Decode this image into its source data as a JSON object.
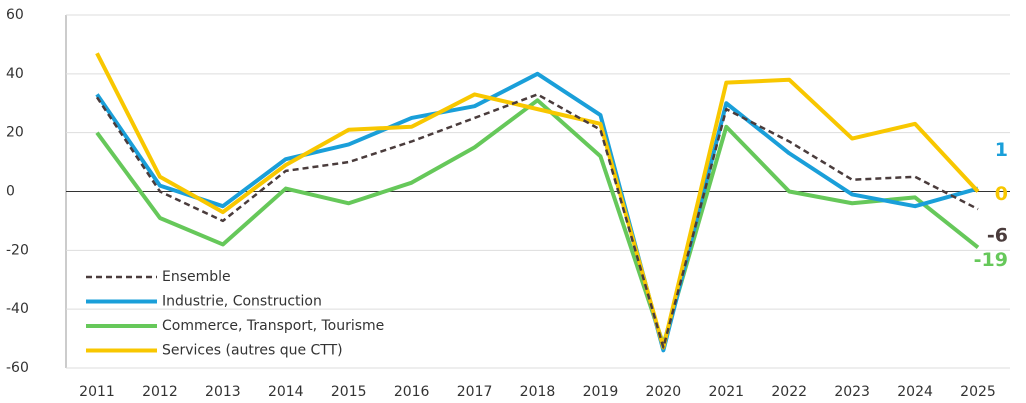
{
  "chart_data": {
    "type": "line",
    "categories": [
      "2011",
      "2012",
      "2013",
      "2014",
      "2015",
      "2016",
      "2017",
      "2018",
      "2019",
      "2020",
      "2021",
      "2022",
      "2023",
      "2024",
      "2025"
    ],
    "series": [
      {
        "name": "Ensemble",
        "color": "#4a3c3c",
        "line_style": "dashed",
        "values": [
          32,
          0,
          -10,
          7,
          10,
          17,
          25,
          33,
          21,
          -53,
          28,
          17,
          4,
          5,
          -6
        ]
      },
      {
        "name": "Industrie, Construction",
        "color": "#1a9fd9",
        "line_style": "solid",
        "values": [
          33,
          2,
          -5,
          11,
          16,
          25,
          29,
          40,
          26,
          -54,
          30,
          13,
          -1,
          -5,
          1
        ]
      },
      {
        "name": "Commerce, Transport, Tourisme",
        "color": "#66c85a",
        "line_style": "solid",
        "values": [
          20,
          -9,
          -18,
          1,
          -4,
          3,
          15,
          31,
          12,
          -52,
          22,
          0,
          -4,
          -2,
          -19
        ]
      },
      {
        "name": "Services (autres que CTT)",
        "color": "#f8c700",
        "line_style": "solid",
        "values": [
          47,
          5,
          -7,
          9,
          21,
          22,
          33,
          28,
          23,
          -53,
          37,
          38,
          18,
          23,
          0
        ]
      }
    ],
    "ylim": [
      -60,
      60
    ],
    "yticks": [
      -60,
      -40,
      -20,
      0,
      20,
      40,
      60
    ],
    "grid": true,
    "legend": "lower left"
  }
}
